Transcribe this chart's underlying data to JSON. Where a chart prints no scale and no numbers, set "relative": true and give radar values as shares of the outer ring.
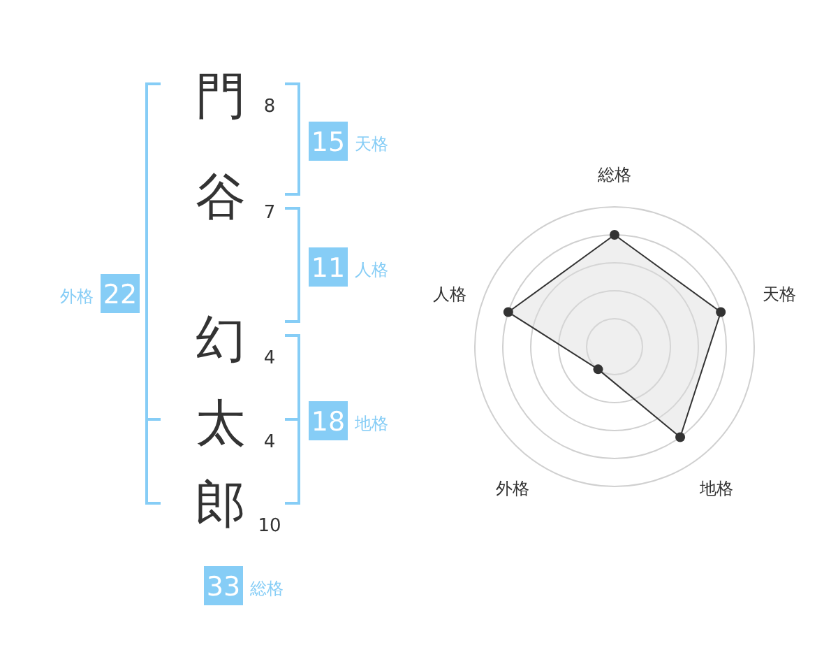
{
  "chart_data": [
    {
      "type": "other",
      "categories": [
        "門",
        "谷",
        "幻",
        "太",
        "郎"
      ],
      "values": [
        8,
        7,
        4,
        4,
        10
      ],
      "data_labels": true,
      "color": "#86cdf6",
      "annotations": [
        "15",
        "天格",
        "11",
        "人格",
        "18",
        "地格",
        "22",
        "外格",
        "33",
        "総格"
      ]
    },
    {
      "type": "radar",
      "categories": [
        "総格",
        "天格",
        "地格",
        "外格",
        "人格"
      ],
      "relative": true,
      "grid": true,
      "marker": "circle",
      "series": [
        {
          "color": "#333333",
          "values": [
            0.8,
            0.8,
            0.8,
            0.2,
            0.8
          ]
        }
      ]
    }
  ]
}
